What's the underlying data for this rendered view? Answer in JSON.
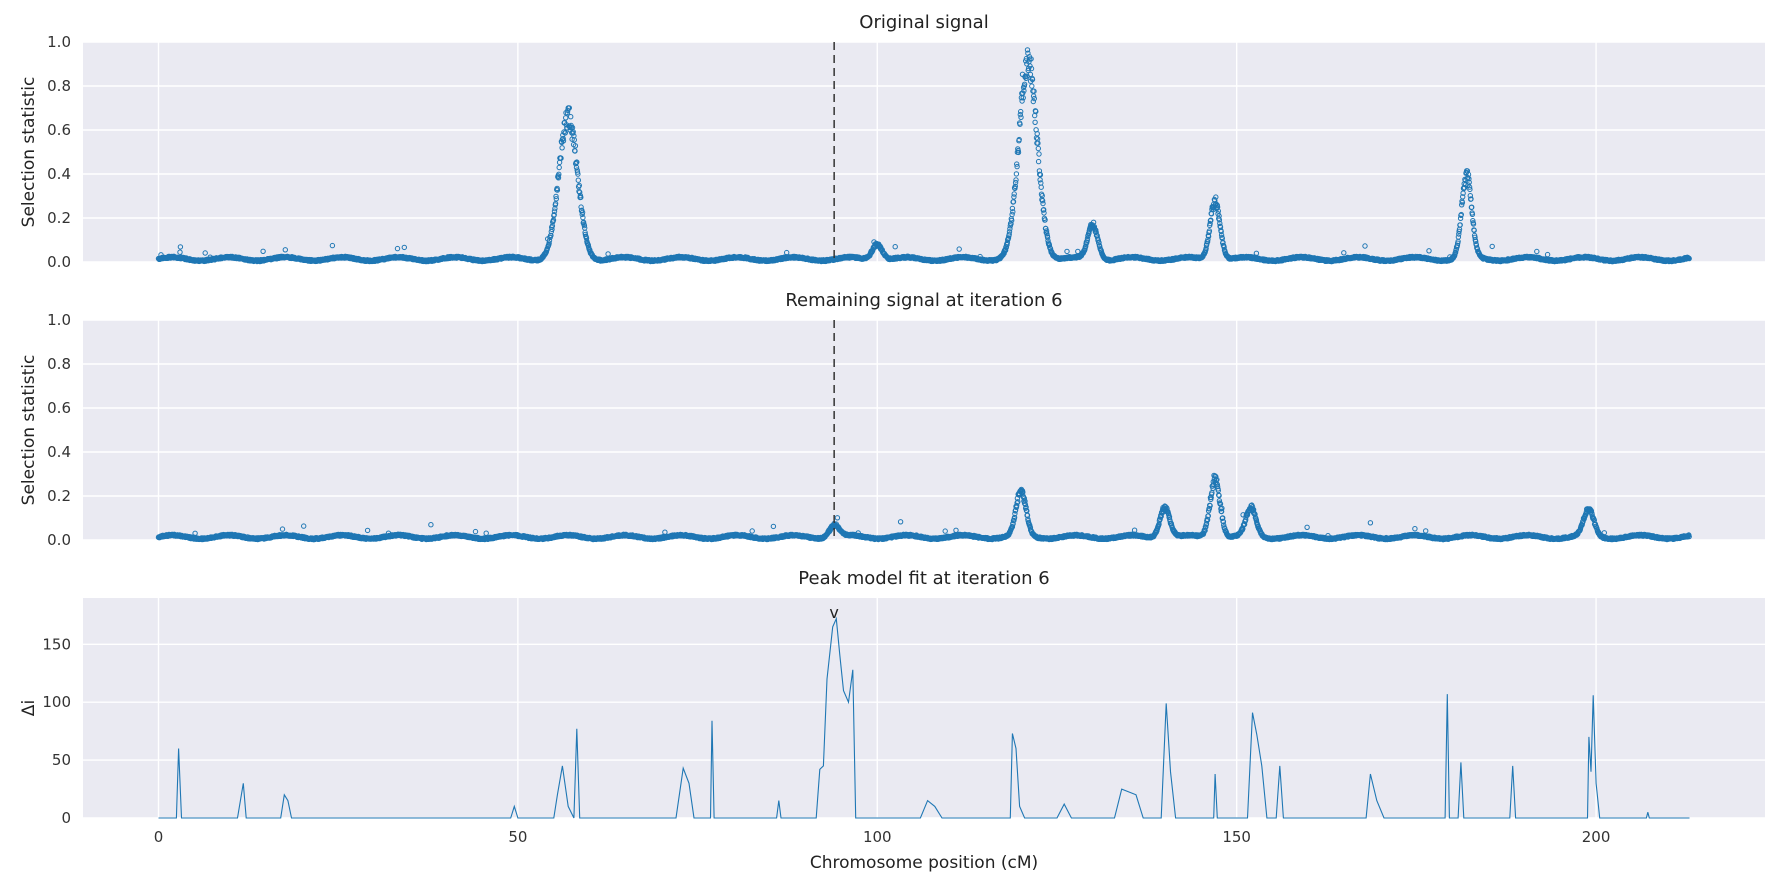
{
  "figure": {
    "xlabel": "Chromosome position (cM)",
    "marker_symbol": "v"
  },
  "colors": {
    "series": "#1f77b4",
    "panel_bg": "#eaeaf2",
    "grid": "#ffffff",
    "vline": "#333333"
  },
  "chart_data": [
    {
      "type": "scatter",
      "title": "Original signal",
      "ylabel": "Selection statistic",
      "xlim": [
        -10.5,
        223.5
      ],
      "ylim": [
        0,
        1.0
      ],
      "yticks": [
        "0.0",
        "0.2",
        "0.4",
        "0.6",
        "0.8",
        "1.0"
      ],
      "xgrid": [
        0,
        50,
        100,
        150,
        200
      ],
      "vline_x": 94,
      "grid": true,
      "series": [
        {
          "x_range": [
            0,
            213
          ],
          "baseline": 0.01,
          "peaks": [
            {
              "x": 57,
              "y": 0.7
            },
            {
              "x": 121,
              "y": 0.96
            },
            {
              "x": 182,
              "y": 0.41
            },
            {
              "x": 147,
              "y": 0.3
            },
            {
              "x": 100,
              "y": 0.09
            },
            {
              "x": 130,
              "y": 0.18
            }
          ]
        }
      ]
    },
    {
      "type": "scatter",
      "title": "Remaining signal at iteration 6",
      "ylabel": "Selection statistic",
      "xlim": [
        -10.5,
        223.5
      ],
      "ylim": [
        0,
        1.0
      ],
      "yticks": [
        "0.0",
        "0.2",
        "0.4",
        "0.6",
        "0.8",
        "1.0"
      ],
      "xgrid": [
        0,
        50,
        100,
        150,
        200
      ],
      "vline_x": 94,
      "grid": true,
      "series": [
        {
          "x_range": [
            0,
            213
          ],
          "baseline": 0.01,
          "peaks": [
            {
              "x": 120,
              "y": 0.23
            },
            {
              "x": 147,
              "y": 0.3
            },
            {
              "x": 94,
              "y": 0.07
            },
            {
              "x": 140,
              "y": 0.16
            },
            {
              "x": 152,
              "y": 0.15
            },
            {
              "x": 199,
              "y": 0.14
            }
          ]
        }
      ]
    },
    {
      "type": "line",
      "title": "Peak model fit at iteration 6",
      "ylabel": "Δi",
      "xlabel": "Chromosome position (cM)",
      "xlim": [
        -10.5,
        223.5
      ],
      "ylim": [
        0,
        190
      ],
      "yticks": [
        "0",
        "50",
        "100",
        "150"
      ],
      "xticks": [
        "0",
        "50",
        "100",
        "150",
        "200"
      ],
      "grid": true,
      "marker": {
        "x": 94,
        "label": "v"
      },
      "series": [
        {
          "points": [
            [
              0,
              0
            ],
            [
              2.5,
              0
            ],
            [
              2.8,
              60
            ],
            [
              3.2,
              0
            ],
            [
              11,
              0
            ],
            [
              11.8,
              30
            ],
            [
              12.2,
              0
            ],
            [
              17,
              0
            ],
            [
              17.5,
              20
            ],
            [
              18,
              15
            ],
            [
              18.5,
              0
            ],
            [
              49,
              0
            ],
            [
              49.5,
              10
            ],
            [
              50,
              0
            ],
            [
              55,
              0
            ],
            [
              55.5,
              20
            ],
            [
              56.2,
              45
            ],
            [
              57,
              10
            ],
            [
              57.8,
              0
            ],
            [
              58.2,
              77
            ],
            [
              58.6,
              0
            ],
            [
              72,
              0
            ],
            [
              73,
              43
            ],
            [
              73.8,
              30
            ],
            [
              74.5,
              0
            ],
            [
              76.8,
              0
            ],
            [
              77,
              84
            ],
            [
              77.3,
              0
            ],
            [
              86,
              0
            ],
            [
              86.3,
              15
            ],
            [
              86.6,
              0
            ],
            [
              91.5,
              0
            ],
            [
              92,
              42
            ],
            [
              92.5,
              45
            ],
            [
              93,
              120
            ],
            [
              93.8,
              165
            ],
            [
              94.3,
              172
            ],
            [
              94.8,
              140
            ],
            [
              95.3,
              110
            ],
            [
              96,
              100
            ],
            [
              96.6,
              128
            ],
            [
              97,
              0
            ],
            [
              106,
              0
            ],
            [
              107,
              15
            ],
            [
              108,
              10
            ],
            [
              109,
              0
            ],
            [
              118.5,
              0
            ],
            [
              118.8,
              73
            ],
            [
              119.3,
              60
            ],
            [
              119.8,
              10
            ],
            [
              120.5,
              0
            ],
            [
              125,
              0
            ],
            [
              126,
              12
            ],
            [
              127,
              0
            ],
            [
              133,
              0
            ],
            [
              134,
              25
            ],
            [
              136,
              20
            ],
            [
              137,
              0
            ],
            [
              139.5,
              0
            ],
            [
              140.2,
              99
            ],
            [
              140.8,
              40
            ],
            [
              141.5,
              0
            ],
            [
              146.8,
              0
            ],
            [
              147,
              38
            ],
            [
              147.3,
              0
            ],
            [
              151.5,
              0
            ],
            [
              152.2,
              91
            ],
            [
              152.8,
              72
            ],
            [
              153.5,
              45
            ],
            [
              154.2,
              0
            ],
            [
              155.5,
              0
            ],
            [
              156,
              45
            ],
            [
              156.5,
              0
            ],
            [
              168,
              0
            ],
            [
              168.6,
              38
            ],
            [
              169.5,
              15
            ],
            [
              170.5,
              0
            ],
            [
              179,
              0
            ],
            [
              179.3,
              107
            ],
            [
              179.6,
              0
            ],
            [
              180.8,
              0
            ],
            [
              181.2,
              48
            ],
            [
              181.6,
              0
            ],
            [
              188,
              0
            ],
            [
              188.4,
              45
            ],
            [
              188.8,
              0
            ],
            [
              198.8,
              0
            ],
            [
              199,
              70
            ],
            [
              199.3,
              40
            ],
            [
              199.6,
              106
            ],
            [
              200,
              30
            ],
            [
              200.5,
              0
            ],
            [
              207,
              0
            ],
            [
              207.2,
              5
            ],
            [
              207.4,
              0
            ],
            [
              213,
              0
            ]
          ]
        }
      ]
    }
  ]
}
